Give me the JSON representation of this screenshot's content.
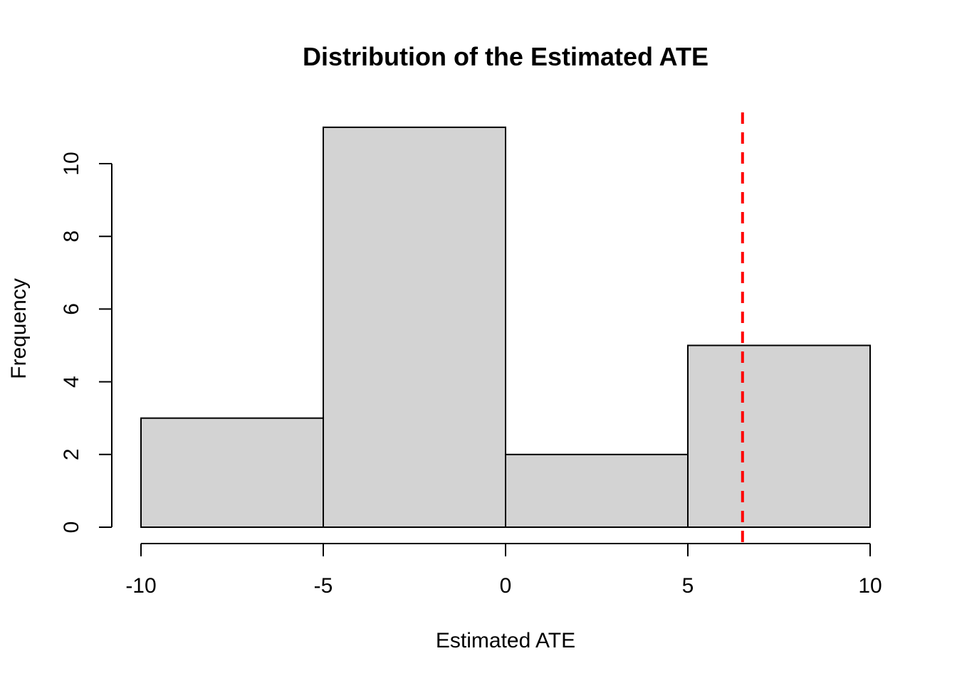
{
  "chart_data": {
    "type": "bar",
    "title": "Distribution of the Estimated ATE",
    "xlabel": "Estimated ATE",
    "ylabel": "Frequency",
    "bins": [
      {
        "start": -10,
        "end": -5,
        "count": 3
      },
      {
        "start": -5,
        "end": 0,
        "count": 11
      },
      {
        "start": 0,
        "end": 5,
        "count": 2
      },
      {
        "start": 5,
        "end": 10,
        "count": 5
      }
    ],
    "xlim": [
      -10,
      10
    ],
    "ylim": [
      0,
      11
    ],
    "x_ticks": [
      -10,
      -5,
      0,
      5,
      10
    ],
    "y_ticks": [
      0,
      2,
      4,
      6,
      8,
      10
    ],
    "reference_line": {
      "x": 6.5,
      "style": "dashed",
      "color": "#ff0000"
    },
    "bar_color": "#d3d3d3",
    "grid": false
  }
}
